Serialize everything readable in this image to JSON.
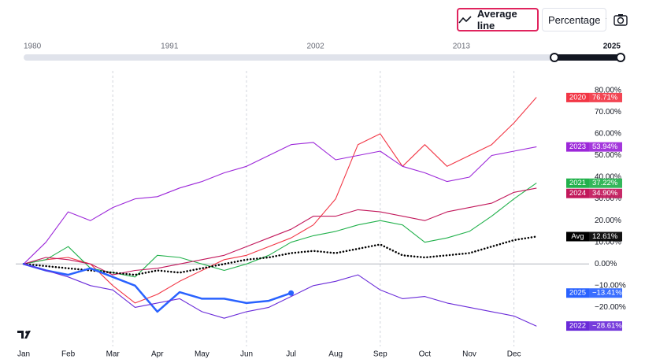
{
  "toolbar": {
    "average_line": "Average line",
    "scale": "Percentage"
  },
  "range_slider": {
    "ticks": [
      1980,
      1991,
      2002,
      2013,
      2025
    ]
  },
  "chart_data": {
    "type": "line",
    "categories": [
      "Jan",
      null,
      "Feb",
      null,
      "Mar",
      null,
      "Apr",
      null,
      "May",
      null,
      "Jun",
      null,
      "Jul",
      null,
      "Aug",
      null,
      "Sep",
      null,
      "Oct",
      null,
      "Nov",
      null,
      "Dec",
      null
    ],
    "series": [
      {
        "name": "2020",
        "color": "#f23645",
        "values": [
          0,
          2,
          3,
          0,
          -10,
          -18,
          -14,
          -8,
          -3,
          2,
          4,
          8,
          12,
          18,
          30,
          55,
          60,
          45,
          55,
          45,
          50,
          55,
          65,
          76.71
        ],
        "value_labels": [
          null,
          null,
          null,
          null,
          null,
          null,
          null,
          null,
          null,
          null,
          null,
          null,
          null,
          null,
          null,
          null,
          null,
          null,
          null,
          null,
          null,
          null,
          null,
          "76.71%"
        ]
      },
      {
        "name": "2023",
        "color": "#9c27d9",
        "values": [
          0,
          10,
          24,
          20,
          26,
          30,
          31,
          35,
          38,
          42,
          45,
          50,
          55,
          56,
          48,
          50,
          52,
          45,
          42,
          38,
          40,
          50,
          52,
          53.94
        ],
        "value_labels": [
          null,
          null,
          null,
          null,
          null,
          null,
          null,
          null,
          null,
          null,
          null,
          null,
          null,
          null,
          null,
          null,
          null,
          null,
          null,
          null,
          null,
          null,
          null,
          "53.94%"
        ]
      },
      {
        "name": "2021",
        "color": "#22b14c",
        "values": [
          0,
          2,
          8,
          -2,
          -4,
          -6,
          4,
          3,
          0,
          -3,
          0,
          4,
          10,
          13,
          15,
          18,
          20,
          18,
          10,
          12,
          15,
          22,
          30,
          37.22
        ],
        "value_labels": [
          null,
          null,
          null,
          null,
          null,
          null,
          null,
          null,
          null,
          null,
          null,
          null,
          null,
          null,
          null,
          null,
          null,
          null,
          null,
          null,
          null,
          null,
          null,
          "37.22%"
        ]
      },
      {
        "name": "2024",
        "color": "#c2185b",
        "values": [
          0,
          3,
          2,
          0,
          -5,
          -3,
          -2,
          0,
          2,
          4,
          8,
          12,
          16,
          22,
          22,
          25,
          24,
          22,
          20,
          24,
          26,
          28,
          33,
          34.9
        ],
        "value_labels": [
          null,
          null,
          null,
          null,
          null,
          null,
          null,
          null,
          null,
          null,
          null,
          null,
          null,
          null,
          null,
          null,
          null,
          null,
          null,
          null,
          null,
          null,
          null,
          "34.90%"
        ]
      },
      {
        "name": "Avg",
        "color": "#000000",
        "values": [
          0,
          -1,
          -2,
          -3,
          -4,
          -5,
          -3,
          -4,
          -2,
          0,
          2,
          3,
          5,
          6,
          5,
          7,
          9,
          4,
          3,
          4,
          5,
          8,
          11,
          12.61
        ],
        "value_labels": [
          null,
          null,
          null,
          null,
          null,
          null,
          null,
          null,
          null,
          null,
          null,
          null,
          null,
          null,
          null,
          null,
          null,
          null,
          null,
          null,
          null,
          null,
          null,
          "12.61%"
        ]
      },
      {
        "name": "2025",
        "color": "#2962ff",
        "values": [
          0,
          -3,
          -5,
          -2,
          -6,
          -10,
          -22,
          -13,
          -16,
          -16,
          -18,
          -17,
          -13.41,
          null,
          null,
          null,
          null,
          null,
          null,
          null,
          null,
          null,
          null,
          null
        ],
        "value_labels": [
          null,
          null,
          null,
          null,
          null,
          null,
          null,
          null,
          null,
          null,
          null,
          null,
          "−13.41%",
          null,
          null,
          null,
          null,
          null,
          null,
          null,
          null,
          null,
          null,
          null
        ]
      },
      {
        "name": "2022",
        "color": "#6a2bd9",
        "values": [
          0,
          -3,
          -6,
          -10,
          -12,
          -20,
          -18,
          -16,
          -22,
          -25,
          -22,
          -20,
          -15,
          -10,
          -8,
          -5,
          -12,
          -16,
          -15,
          -18,
          -20,
          -22,
          -24,
          -28.61
        ],
        "value_labels": [
          null,
          null,
          null,
          null,
          null,
          null,
          null,
          null,
          null,
          null,
          null,
          null,
          null,
          null,
          null,
          null,
          null,
          null,
          null,
          null,
          null,
          null,
          null,
          "−28.61%"
        ]
      }
    ],
    "ylim": [
      -38,
      89
    ],
    "yticks": [
      {
        "value": 80,
        "label": "80.00%"
      },
      {
        "value": 70,
        "label": "70.00%"
      },
      {
        "value": 60,
        "label": "60.00%"
      },
      {
        "value": 50,
        "label": "50.00%"
      },
      {
        "value": 40,
        "label": "40.00%"
      },
      {
        "value": 30,
        "label": "30.00%"
      },
      {
        "value": 20,
        "label": "20.00%"
      },
      {
        "value": 10,
        "label": "10.00%"
      },
      {
        "value": 0,
        "label": "0.00%"
      },
      {
        "value": -10,
        "label": "−10.00%"
      },
      {
        "value": -20,
        "label": "−20.00%"
      }
    ],
    "grid": true
  }
}
